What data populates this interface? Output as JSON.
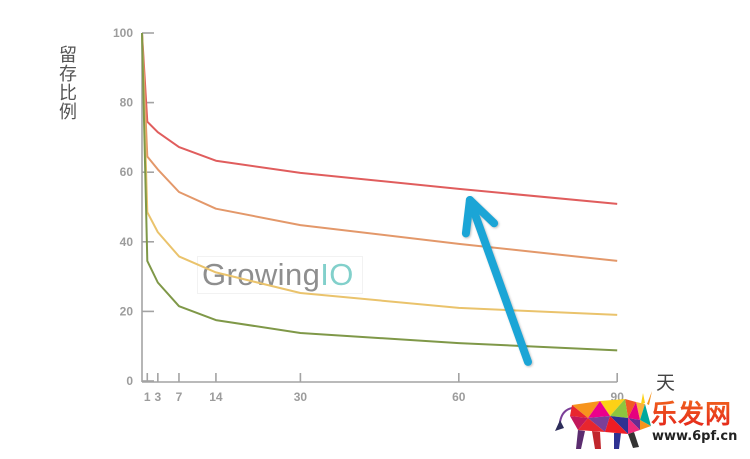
{
  "chart_data": {
    "type": "line",
    "title": "",
    "xlabel": "天",
    "ylabel": "留存比例",
    "x": [
      0,
      1,
      3,
      7,
      14,
      30,
      60,
      90
    ],
    "x_ticks": [
      1,
      3,
      7,
      14,
      30,
      60,
      90
    ],
    "y_ticks": [
      0,
      20,
      40,
      60,
      80,
      100
    ],
    "xlim": [
      0,
      90
    ],
    "ylim": [
      0,
      100
    ],
    "grid": false,
    "legend": null,
    "series": [
      {
        "color_name": "red",
        "color": "#e05d5d",
        "values": [
          100,
          74.5,
          71.5,
          67.2,
          63.3,
          59.8,
          55.2,
          50.9
        ]
      },
      {
        "color_name": "orange",
        "color": "#e3986a",
        "values": [
          100,
          64.5,
          60.8,
          54.3,
          49.5,
          44.8,
          39.4,
          34.5
        ]
      },
      {
        "color_name": "yellow",
        "color": "#eac36c",
        "values": [
          100,
          48.5,
          42.8,
          35.8,
          31.2,
          25.3,
          21.0,
          19.0
        ]
      },
      {
        "color_name": "green",
        "color": "#7f9848",
        "values": [
          100,
          34.5,
          28.3,
          21.5,
          17.5,
          13.8,
          10.9,
          8.8
        ]
      }
    ],
    "annotations": [
      {
        "type": "arrow",
        "from": [
          73.1,
          5.5
        ],
        "to": [
          62.1,
          52.0
        ],
        "color": "#1ba5d6"
      }
    ]
  },
  "watermarks": {
    "growingio": {
      "part1": "Growing",
      "part2": "IO"
    },
    "site_logo": {
      "name": "乐发网",
      "url": "www.6pf.cn"
    }
  }
}
